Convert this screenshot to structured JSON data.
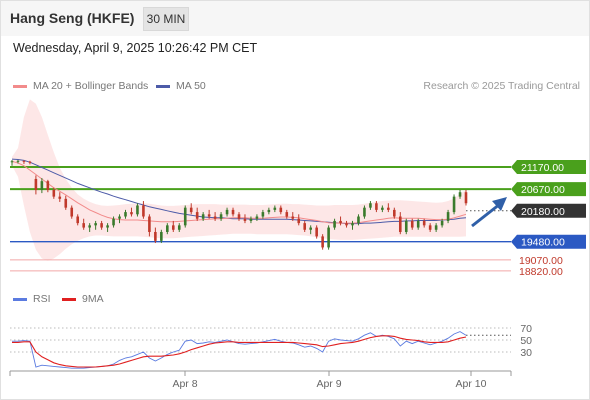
{
  "header": {
    "title": "Hang Seng (HKFE)",
    "interval": "30 MIN"
  },
  "date_line": "Wednesday, April 9, 2025 10:26:42 PM CET",
  "legend": {
    "ma20": "MA 20 + Bollinger Bands",
    "ma50": "MA 50",
    "credit": "Research © 2025 Trading Central"
  },
  "indicator_legend": {
    "rsi": "RSI",
    "ma9": "9MA"
  },
  "colors": {
    "up": "#3a7a2c",
    "down": "#c0392b",
    "ma20": "#f28b8b",
    "ma50": "#4d5ba8",
    "bollinger_fill": "#fde3e3",
    "resistance": "#4aa01c",
    "support": "#2b59c3",
    "target_line": "#f2a6a6",
    "current": "#333333",
    "rsi": "#5b7be0",
    "rsi_ma": "#e02020",
    "arrow": "#2f5fa8"
  },
  "chart_data": [
    {
      "type": "candlestick",
      "title": "Hang Seng (HKFE)",
      "x_ticks": [
        "Apr 8",
        "Apr 9",
        "Apr 10"
      ],
      "ylim": [
        18500,
        22800
      ],
      "levels": [
        {
          "value": 21170,
          "label": "21170.00",
          "kind": "resistance"
        },
        {
          "value": 20670,
          "label": "20670.00",
          "kind": "resistance"
        },
        {
          "value": 20180,
          "label": "20180.00",
          "kind": "current"
        },
        {
          "value": 19480,
          "label": "19480.00",
          "kind": "support"
        },
        {
          "value": 19070,
          "label": "19070.00",
          "kind": "target"
        },
        {
          "value": 18820,
          "label": "18820.00",
          "kind": "target"
        }
      ],
      "candles": [
        [
          21280,
          21330,
          21200,
          21300
        ],
        [
          21300,
          21330,
          21250,
          21310
        ],
        [
          21310,
          21320,
          21240,
          21290
        ],
        [
          21290,
          21310,
          21230,
          21270
        ],
        [
          20900,
          20980,
          20550,
          20650
        ],
        [
          20650,
          20920,
          20580,
          20850
        ],
        [
          20850,
          20880,
          20600,
          20650
        ],
        [
          20650,
          20700,
          20450,
          20500
        ],
        [
          20500,
          20600,
          20380,
          20450
        ],
        [
          20450,
          20520,
          20200,
          20250
        ],
        [
          20250,
          20300,
          20000,
          20050
        ],
        [
          20050,
          20100,
          19850,
          19900
        ],
        [
          19900,
          20000,
          19750,
          19800
        ],
        [
          19800,
          19900,
          19700,
          19850
        ],
        [
          19850,
          19950,
          19750,
          19900
        ],
        [
          19900,
          19950,
          19750,
          19800
        ],
        [
          19800,
          19900,
          19700,
          19850
        ],
        [
          19850,
          20050,
          19800,
          20000
        ],
        [
          20000,
          20100,
          19900,
          20050
        ],
        [
          20050,
          20200,
          20000,
          20150
        ],
        [
          20150,
          20250,
          20050,
          20100
        ],
        [
          20100,
          20350,
          20050,
          20300
        ],
        [
          20300,
          20400,
          20000,
          20050
        ],
        [
          20050,
          20100,
          19600,
          19700
        ],
        [
          19700,
          19800,
          19450,
          19500
        ],
        [
          19500,
          19750,
          19450,
          19700
        ],
        [
          19700,
          19900,
          19650,
          19850
        ],
        [
          19850,
          19950,
          19700,
          19750
        ],
        [
          19750,
          19900,
          19700,
          19850
        ],
        [
          19850,
          20300,
          19800,
          20250
        ],
        [
          20250,
          20350,
          20100,
          20150
        ],
        [
          20150,
          20250,
          19950,
          20000
        ],
        [
          20000,
          20150,
          19950,
          20100
        ],
        [
          20100,
          20200,
          20000,
          20050
        ],
        [
          20050,
          20150,
          19950,
          20000
        ],
        [
          20000,
          20150,
          19950,
          20100
        ],
        [
          20100,
          20250,
          20050,
          20200
        ],
        [
          20200,
          20250,
          20050,
          20100
        ],
        [
          20100,
          20150,
          19950,
          20000
        ],
        [
          20000,
          20100,
          19900,
          19950
        ],
        [
          19950,
          20050,
          19900,
          20000
        ],
        [
          20000,
          20100,
          19950,
          20050
        ],
        [
          20050,
          20200,
          20000,
          20150
        ],
        [
          20150,
          20250,
          20100,
          20200
        ],
        [
          20200,
          20300,
          20150,
          20250
        ],
        [
          20250,
          20300,
          20100,
          20150
        ],
        [
          20150,
          20200,
          20000,
          20050
        ],
        [
          20050,
          20150,
          19950,
          20000
        ],
        [
          20000,
          20100,
          19850,
          19900
        ],
        [
          19900,
          19950,
          19700,
          19750
        ],
        [
          19750,
          19850,
          19650,
          19800
        ],
        [
          19800,
          19850,
          19550,
          19600
        ],
        [
          19600,
          19650,
          19300,
          19350
        ],
        [
          19350,
          19850,
          19300,
          19800
        ],
        [
          19800,
          20000,
          19750,
          19950
        ],
        [
          19950,
          20050,
          19850,
          19900
        ],
        [
          19900,
          19950,
          19800,
          19850
        ],
        [
          19850,
          19950,
          19750,
          19900
        ],
        [
          19900,
          20100,
          19850,
          20050
        ],
        [
          20050,
          20300,
          20000,
          20250
        ],
        [
          20250,
          20400,
          20200,
          20350
        ],
        [
          20350,
          20400,
          20150,
          20200
        ],
        [
          20200,
          20300,
          20150,
          20250
        ],
        [
          20250,
          20350,
          20150,
          20200
        ],
        [
          20200,
          20250,
          20000,
          20050
        ],
        [
          20050,
          20150,
          19650,
          19700
        ],
        [
          19700,
          20000,
          19650,
          19950
        ],
        [
          19950,
          20000,
          19750,
          19800
        ],
        [
          19800,
          20000,
          19750,
          19950
        ],
        [
          19950,
          20000,
          19800,
          19850
        ],
        [
          19850,
          19900,
          19700,
          19750
        ],
        [
          19750,
          19900,
          19700,
          19850
        ],
        [
          19850,
          20000,
          19800,
          19950
        ],
        [
          19950,
          20200,
          19900,
          20150
        ],
        [
          20150,
          20550,
          20100,
          20500
        ],
        [
          20500,
          20650,
          20450,
          20600
        ],
        [
          20600,
          20650,
          20300,
          20350
        ]
      ],
      "ma20": [
        21300,
        21260,
        21200,
        21100,
        21000,
        20900,
        20800,
        20700,
        20620,
        20540,
        20450,
        20360,
        20280,
        20200,
        20140,
        20080,
        20030,
        20000,
        19980,
        19970,
        19970,
        19970,
        19960,
        19950,
        19940,
        19930,
        19930,
        19930,
        19940,
        19950,
        19960,
        19970,
        19980,
        19990,
        20000,
        20000,
        20010,
        20020,
        20020,
        20020,
        20010,
        20010,
        20010,
        20020,
        20030,
        20040,
        20040,
        20030,
        20020,
        20000,
        19980,
        19960,
        19930,
        19910,
        19900,
        19900,
        19900,
        19900,
        19910,
        19930,
        19950,
        19970,
        19990,
        20010,
        20020,
        20010,
        20010,
        20010,
        20010,
        20000,
        19990,
        19980,
        19980,
        19990,
        20020,
        20060,
        20100
      ],
      "bb_upper": [
        21400,
        21600,
        22300,
        22700,
        22600,
        22300,
        21900,
        21500,
        21150,
        20900,
        20700,
        20550,
        20450,
        20380,
        20330,
        20300,
        20290,
        20300,
        20310,
        20330,
        20340,
        20350,
        20350,
        20340,
        20320,
        20300,
        20290,
        20290,
        20300,
        20310,
        20320,
        20330,
        20330,
        20330,
        20330,
        20320,
        20320,
        20320,
        20320,
        20320,
        20310,
        20310,
        20310,
        20320,
        20330,
        20340,
        20340,
        20330,
        20330,
        20320,
        20310,
        20300,
        20300,
        20300,
        20310,
        20310,
        20310,
        20310,
        20320,
        20340,
        20360,
        20380,
        20400,
        20410,
        20420,
        20420,
        20410,
        20400,
        20390,
        20380,
        20370,
        20360,
        20370,
        20400,
        20460,
        20560,
        20650
      ],
      "bb_lower": [
        21200,
        20950,
        20300,
        19700,
        19300,
        19100,
        19050,
        19100,
        19200,
        19320,
        19420,
        19500,
        19560,
        19600,
        19620,
        19620,
        19610,
        19600,
        19600,
        19600,
        19600,
        19600,
        19590,
        19580,
        19570,
        19560,
        19560,
        19560,
        19570,
        19580,
        19590,
        19600,
        19610,
        19620,
        19630,
        19640,
        19650,
        19660,
        19660,
        19660,
        19660,
        19650,
        19650,
        19650,
        19650,
        19650,
        19650,
        19640,
        19630,
        19620,
        19600,
        19580,
        19560,
        19540,
        19530,
        19520,
        19520,
        19520,
        19530,
        19540,
        19550,
        19560,
        19570,
        19580,
        19590,
        19590,
        19590,
        19590,
        19590,
        19590,
        19590,
        19590,
        19590,
        19590,
        19590,
        19590,
        19600
      ],
      "ma50": [
        21350,
        21340,
        21320,
        21280,
        21220,
        21160,
        21100,
        21040,
        20980,
        20920,
        20860,
        20800,
        20750,
        20700,
        20650,
        20600,
        20560,
        20510,
        20470,
        20430,
        20390,
        20350,
        20310,
        20270,
        20240,
        20210,
        20180,
        20150,
        20120,
        20100,
        20080,
        20060,
        20040,
        20030,
        20020,
        20020,
        20010,
        20000,
        20000,
        20000,
        19990,
        19990,
        19990,
        19990,
        19990,
        19990,
        19990,
        19980,
        19970,
        19960,
        19950,
        19940,
        19930,
        19920,
        19910,
        19900,
        19890,
        19890,
        19890,
        19900,
        19900,
        19910,
        19920,
        19930,
        19940,
        19940,
        19950,
        19950,
        19960,
        19960,
        19960,
        19960,
        19970,
        19980,
        19990,
        20010,
        20020
      ]
    },
    {
      "type": "line",
      "title": "RSI",
      "ylim": [
        0,
        100
      ],
      "y_ticks": [
        30,
        50,
        70
      ],
      "series": [
        {
          "name": "RSI",
          "values": [
            48,
            48,
            49,
            48,
            5,
            8,
            7,
            6,
            5,
            4,
            3,
            3,
            3,
            4,
            5,
            6,
            7,
            10,
            16,
            20,
            22,
            26,
            30,
            20,
            15,
            20,
            26,
            30,
            33,
            48,
            50,
            44,
            45,
            47,
            46,
            48,
            50,
            47,
            44,
            43,
            44,
            45,
            47,
            49,
            51,
            48,
            46,
            45,
            42,
            38,
            40,
            36,
            30,
            48,
            52,
            50,
            49,
            48,
            52,
            58,
            62,
            56,
            58,
            56,
            52,
            40,
            48,
            44,
            48,
            45,
            42,
            45,
            48,
            53,
            60,
            64,
            58
          ]
        },
        {
          "name": "9MA",
          "values": [
            46,
            46,
            47,
            47,
            30,
            22,
            17,
            12,
            9,
            7,
            6,
            5,
            5,
            5,
            5,
            6,
            7,
            8,
            10,
            13,
            16,
            19,
            22,
            23,
            23,
            23,
            24,
            25,
            27,
            30,
            34,
            37,
            40,
            43,
            45,
            46,
            47,
            47,
            46,
            46,
            46,
            46,
            46,
            46,
            46,
            46,
            46,
            46,
            45,
            44,
            43,
            42,
            39,
            40,
            42,
            44,
            45,
            46,
            48,
            51,
            54,
            56,
            57,
            57,
            56,
            53,
            51,
            50,
            49,
            47,
            46,
            46,
            46,
            47,
            50,
            53,
            55
          ]
        }
      ]
    }
  ]
}
